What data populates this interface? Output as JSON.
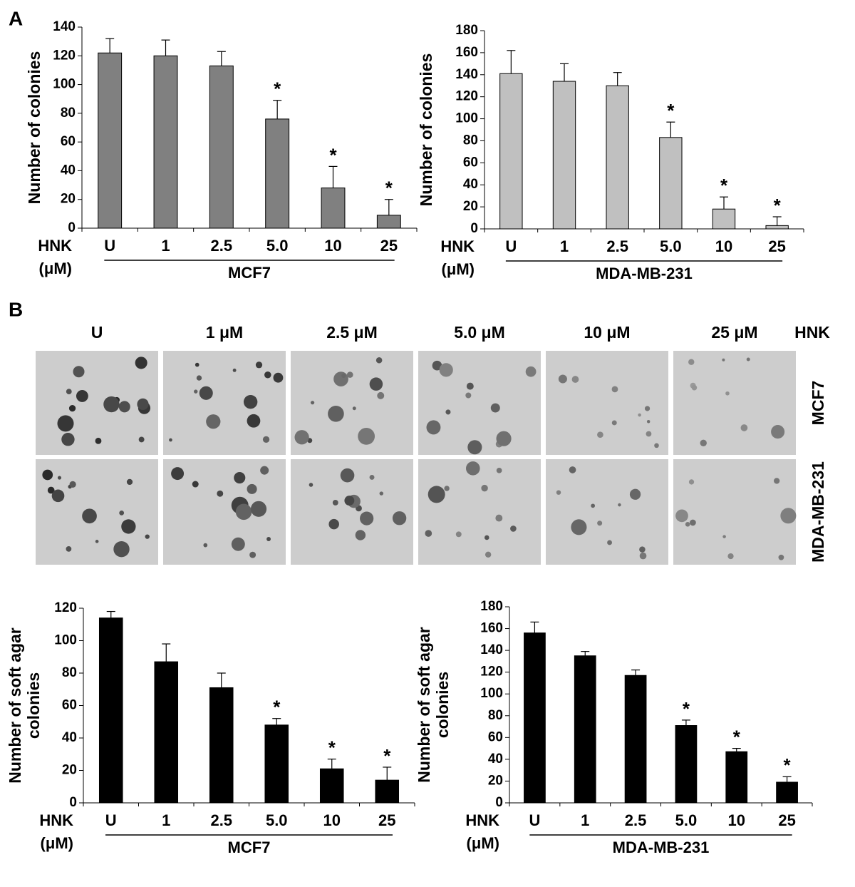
{
  "panels": [
    "A",
    "B"
  ],
  "chart_data": [
    {
      "type": "bar",
      "ylabel": [
        "Number of colonies"
      ],
      "x_prefix": [
        "HNK",
        "(μM)"
      ],
      "group": "MCF7",
      "categories": [
        "U",
        "1",
        "2.5",
        "5.0",
        "10",
        "25"
      ],
      "values": [
        122,
        120,
        113,
        76,
        28,
        9
      ],
      "errors": [
        10,
        11,
        10,
        13,
        15,
        11
      ],
      "annotations": [
        null,
        null,
        null,
        "*",
        "*",
        "*"
      ],
      "color": "#808080",
      "ylim": [
        0,
        140
      ],
      "yticks": [
        0,
        20,
        40,
        60,
        80,
        100,
        120,
        140
      ]
    },
    {
      "type": "bar",
      "ylabel": [
        "Number of colonies"
      ],
      "x_prefix": [
        "HNK",
        "(μM)"
      ],
      "group": "MDA-MB-231",
      "categories": [
        "U",
        "1",
        "2.5",
        "5.0",
        "10",
        "25"
      ],
      "values": [
        141,
        134,
        130,
        83,
        18,
        3
      ],
      "errors": [
        21,
        16,
        12,
        14,
        11,
        8
      ],
      "annotations": [
        null,
        null,
        null,
        "*",
        "*",
        "*"
      ],
      "color": "#c0c0c0",
      "ylim": [
        0,
        180
      ],
      "yticks": [
        0,
        20,
        40,
        60,
        80,
        100,
        120,
        140,
        160,
        180
      ]
    },
    {
      "type": "bar",
      "ylabel": [
        "Number of soft agar",
        "colonies"
      ],
      "x_prefix": [
        "HNK",
        "(μM)"
      ],
      "group": "MCF7",
      "categories": [
        "U",
        "1",
        "2.5",
        "5.0",
        "10",
        "25"
      ],
      "values": [
        114,
        87,
        71,
        48,
        21,
        14
      ],
      "errors": [
        4,
        11,
        9,
        4,
        6,
        8
      ],
      "annotations": [
        null,
        null,
        null,
        "*",
        "*",
        "*"
      ],
      "color": "#000000",
      "ylim": [
        0,
        120
      ],
      "yticks": [
        0,
        20,
        40,
        60,
        80,
        100,
        120
      ]
    },
    {
      "type": "bar",
      "ylabel": [
        "Number of soft agar",
        "colonies"
      ],
      "x_prefix": [
        "HNK",
        "(μM)"
      ],
      "group": "MDA-MB-231",
      "categories": [
        "U",
        "1",
        "2.5",
        "5.0",
        "10",
        "25"
      ],
      "values": [
        156,
        135,
        117,
        71,
        47,
        19
      ],
      "errors": [
        10,
        4,
        5,
        5,
        3,
        5
      ],
      "annotations": [
        null,
        null,
        null,
        "*",
        "*",
        "*"
      ],
      "color": "#000000",
      "ylim": [
        0,
        180
      ],
      "yticks": [
        0,
        20,
        40,
        60,
        80,
        100,
        120,
        140,
        160,
        180
      ]
    }
  ],
  "panel_b": {
    "columns": [
      "U",
      "1 μM",
      "2.5 μM",
      "5.0 μM",
      "10 μM",
      "25 μM"
    ],
    "treatment": "HNK",
    "rows": [
      "MCF7",
      "MDA-MB-231"
    ]
  }
}
